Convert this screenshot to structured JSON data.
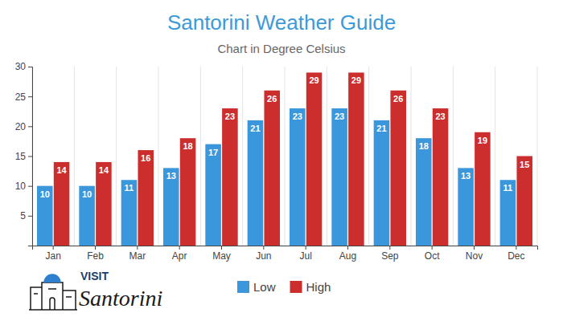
{
  "chart_data": {
    "type": "bar",
    "title": "Santorini Weather Guide",
    "subtitle": "Chart in Degree Celsius",
    "categories": [
      "Jan",
      "Feb",
      "Mar",
      "Apr",
      "May",
      "Jun",
      "Jul",
      "Aug",
      "Sep",
      "Oct",
      "Nov",
      "Dec"
    ],
    "series": [
      {
        "name": "Low",
        "color": "#3a97dc",
        "values": [
          10,
          10,
          11,
          13,
          17,
          21,
          23,
          23,
          21,
          18,
          13,
          11
        ]
      },
      {
        "name": "High",
        "color": "#cc2e2e",
        "values": [
          14,
          14,
          16,
          18,
          23,
          26,
          29,
          29,
          26,
          23,
          19,
          15
        ]
      }
    ],
    "ylim": [
      0,
      30
    ],
    "yticks": [
      5,
      10,
      15,
      20,
      25,
      30
    ],
    "data_labels": true,
    "legend": "bottom",
    "annotations": [
      "VISIT",
      "Santorini"
    ]
  }
}
